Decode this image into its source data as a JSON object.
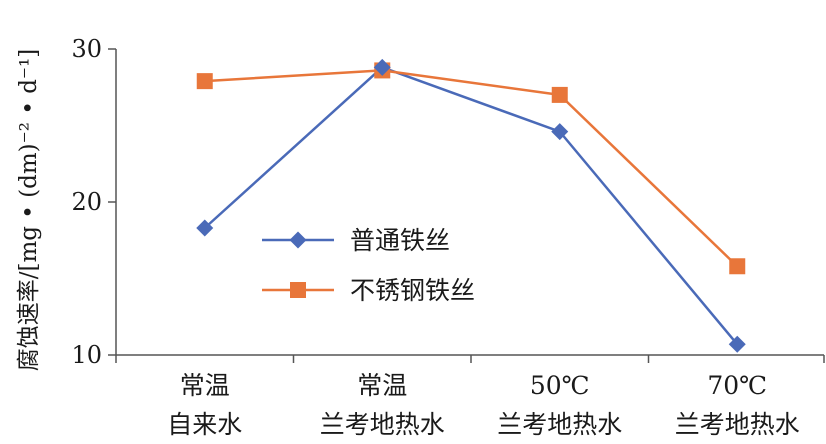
{
  "chart_data": {
    "type": "line",
    "categories": [
      [
        "常温",
        "自来水"
      ],
      [
        "常温",
        "兰考地热水"
      ],
      [
        "50℃",
        "兰考地热水"
      ],
      [
        "70℃",
        "兰考地热水"
      ]
    ],
    "series": [
      {
        "name": "普通铁丝",
        "values": [
          18.3,
          28.8,
          24.6,
          10.7
        ],
        "color": "#4a6ab8",
        "marker": "diamond"
      },
      {
        "name": "不锈钢铁丝",
        "values": [
          27.9,
          28.6,
          27.0,
          15.8
        ],
        "color": "#e8763a",
        "marker": "square"
      }
    ],
    "title": "",
    "xlabel": "",
    "ylabel": "腐蚀速率/[mg • (dm)⁻² • d⁻¹]",
    "ylim": [
      10,
      30
    ],
    "yticks": [
      10,
      20,
      30
    ],
    "grid": false,
    "legend": "center"
  }
}
